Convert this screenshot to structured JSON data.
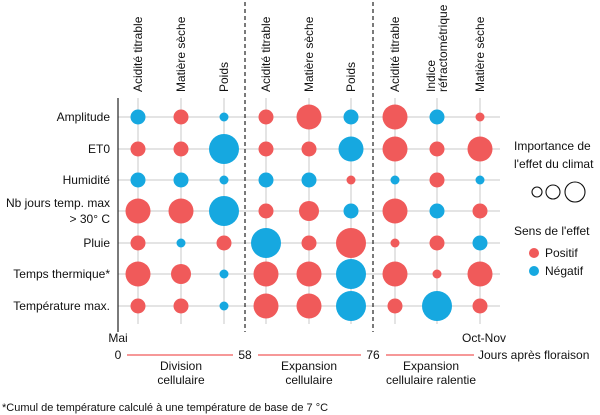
{
  "chart_data": {
    "type": "bubble-matrix",
    "columns": [
      {
        "label": "Acidité titrable",
        "group": 0
      },
      {
        "label": "Matière sèche",
        "group": 0
      },
      {
        "label": "Poids",
        "group": 0
      },
      {
        "label": "Acidité titrable",
        "group": 1
      },
      {
        "label": "Matière sèche",
        "group": 1
      },
      {
        "label": "Poids",
        "group": 1
      },
      {
        "label": "Acidité titrable",
        "group": 2
      },
      {
        "label": "Indice réfractométrique",
        "group": 2
      },
      {
        "label": "Matière sèche",
        "group": 2
      }
    ],
    "rows": [
      {
        "label": "Amplitude",
        "cells": [
          [
            2,
            "N"
          ],
          [
            2,
            "P"
          ],
          [
            1,
            "N"
          ],
          [
            2,
            "P"
          ],
          [
            4,
            "P"
          ],
          [
            2,
            "N"
          ],
          [
            4,
            "P"
          ],
          [
            2,
            "N"
          ],
          [
            1,
            "P"
          ]
        ]
      },
      {
        "label": "ET0",
        "cells": [
          [
            2,
            "P"
          ],
          [
            2,
            "P"
          ],
          [
            5,
            "N"
          ],
          [
            2,
            "P"
          ],
          [
            2,
            "P"
          ],
          [
            4,
            "N"
          ],
          [
            4,
            "P"
          ],
          [
            2,
            "P"
          ],
          [
            4,
            "P"
          ]
        ]
      },
      {
        "label": "Humidité",
        "cells": [
          [
            2,
            "N"
          ],
          [
            2,
            "N"
          ],
          [
            1,
            "N"
          ],
          [
            2,
            "N"
          ],
          [
            2,
            "N"
          ],
          [
            1,
            "P"
          ],
          [
            1,
            "N"
          ],
          [
            2,
            "P"
          ],
          [
            1,
            "N"
          ]
        ]
      },
      {
        "label": "Nb jours temp. max\n> 30° C",
        "cells": [
          [
            4,
            "P"
          ],
          [
            4,
            "P"
          ],
          [
            5,
            "N"
          ],
          [
            2,
            "P"
          ],
          [
            3,
            "P"
          ],
          [
            2,
            "N"
          ],
          [
            4,
            "P"
          ],
          [
            2,
            "N"
          ],
          [
            2,
            "P"
          ]
        ]
      },
      {
        "label": "Pluie",
        "cells": [
          [
            2,
            "P"
          ],
          [
            1,
            "N"
          ],
          [
            2,
            "P"
          ],
          [
            5,
            "N"
          ],
          [
            2,
            "P"
          ],
          [
            5,
            "P"
          ],
          [
            1,
            "P"
          ],
          [
            2,
            "P"
          ],
          [
            2,
            "N"
          ]
        ]
      },
      {
        "label": "Temps thermique*",
        "cells": [
          [
            4,
            "P"
          ],
          [
            3,
            "P"
          ],
          [
            1,
            "N"
          ],
          [
            4,
            "P"
          ],
          [
            4,
            "P"
          ],
          [
            5,
            "N"
          ],
          [
            4,
            "P"
          ],
          [
            1,
            "P"
          ],
          [
            4,
            "P"
          ]
        ]
      },
      {
        "label": "Température max.",
        "cells": [
          [
            2,
            "P"
          ],
          [
            2,
            "P"
          ],
          [
            1,
            "N"
          ],
          [
            4,
            "P"
          ],
          [
            4,
            "P"
          ],
          [
            5,
            "N"
          ],
          [
            2,
            "P"
          ],
          [
            5,
            "N"
          ],
          [
            2,
            "P"
          ]
        ]
      }
    ],
    "size_scale": "1 = smallest, 5 = largest",
    "sign_legend": {
      "P": "Positif",
      "N": "Négatif"
    },
    "colors": {
      "P": "#f05a5a",
      "N": "#16a8e0",
      "grid": "#c8c8c8",
      "timeline": "#f05a5a"
    },
    "timeline": {
      "start_label": "Mai",
      "end_label": "Oct-Nov",
      "ticks": [
        "0",
        "58",
        "76"
      ],
      "axis_label": "Jours après floraison",
      "phases": [
        "Division\ncellulaire",
        "Expansion\ncellulaire",
        "Expansion\ncellulaire ralentie"
      ]
    },
    "legend": {
      "importance_title": "Importance de\nl'effet du climat",
      "sign_title": "Sens de l'effet",
      "positive": "Positif",
      "negative": "Négatif"
    },
    "footnote": "*Cumul de température calculé à une température de base de 7 °C"
  }
}
